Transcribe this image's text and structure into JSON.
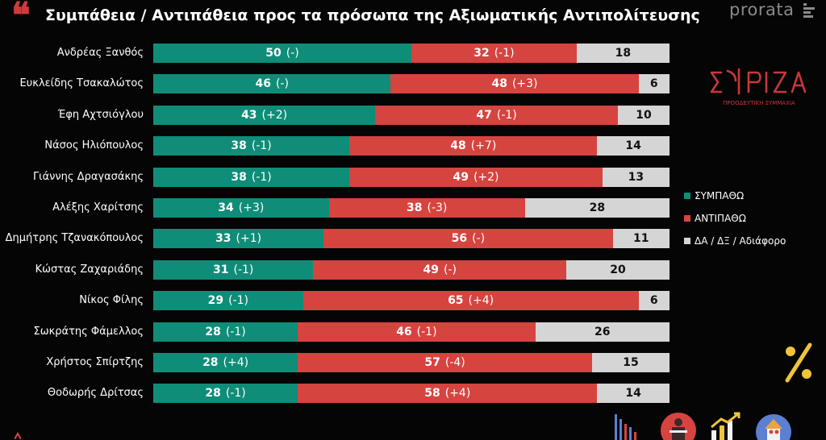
{
  "header": {
    "title": "Συμπάθεια / Αντιπάθεια προς τα πρόσωπα της Αξιωματικής Αντιπολίτευσης",
    "brand": "prorata"
  },
  "logo": {
    "name": "ΣΥΡΙΖΑ",
    "subtitle": "ΠΡΟΟΔΕΥΤΙΚΗ ΣΥΜΜΑΧΙΑ"
  },
  "colors": {
    "sympathy": "#0f8d78",
    "antipathy": "#d6443f",
    "neutral": "#d5d5d5",
    "accent": "#d03a3a"
  },
  "icons": [
    "quote-icon",
    "syriza-logo",
    "percent-icon",
    "bar-chart-icon",
    "speaker-podium-icon",
    "growth-chart-icon",
    "people-house-icon"
  ],
  "chart_data": {
    "type": "bar",
    "orientation": "horizontal-stacked",
    "title": "Συμπάθεια / Αντιπάθεια προς τα πρόσωπα της Αξιωματικής Αντιπολίτευσης",
    "legend_position": "right",
    "categories": [
      "Ανδρέας Ξανθός",
      "Ευκλείδης Τσακαλώτος",
      "Έφη Αχτσιόγλου",
      "Νάσος Ηλιόπουλος",
      "Γιάννης Δραγασάκης",
      "Αλέξης Χαρίτσης",
      "Δημήτρης Τζανακόπουλος",
      "Κώστας Ζαχαριάδης",
      "Νίκος Φίλης",
      "Σωκράτης Φάμελλος",
      "Χρήστος Σπίρτζης",
      "Θοδωρής Δρίτσας"
    ],
    "series": [
      {
        "name": "ΣΥΜΠΑΘΩ",
        "values": [
          50,
          46,
          43,
          38,
          38,
          34,
          33,
          31,
          29,
          28,
          28,
          28
        ],
        "changes": [
          "(-)",
          "(-)",
          "(+2)",
          "(-1)",
          "(-1)",
          "(+3)",
          "(+1)",
          "(-1)",
          "(-1)",
          "(-1)",
          "(+4)",
          "(-1)"
        ]
      },
      {
        "name": "ΑΝΤΙΠΑΘΩ",
        "values": [
          32,
          48,
          47,
          48,
          49,
          38,
          56,
          49,
          65,
          46,
          57,
          58
        ],
        "changes": [
          "(-1)",
          "(+3)",
          "(-1)",
          "(+7)",
          "(+2)",
          "(-3)",
          "(-)",
          "(-)",
          "(+4)",
          "(-1)",
          "(-4)",
          "(+4)"
        ]
      },
      {
        "name": "ΔΑ / ΔΞ / Αδιάφορο",
        "values": [
          18,
          6,
          10,
          14,
          13,
          28,
          11,
          20,
          6,
          26,
          15,
          14
        ],
        "changes": [
          "",
          "",
          "",
          "",
          "",
          "",
          "",
          "",
          "",
          "",
          "",
          ""
        ]
      }
    ]
  }
}
